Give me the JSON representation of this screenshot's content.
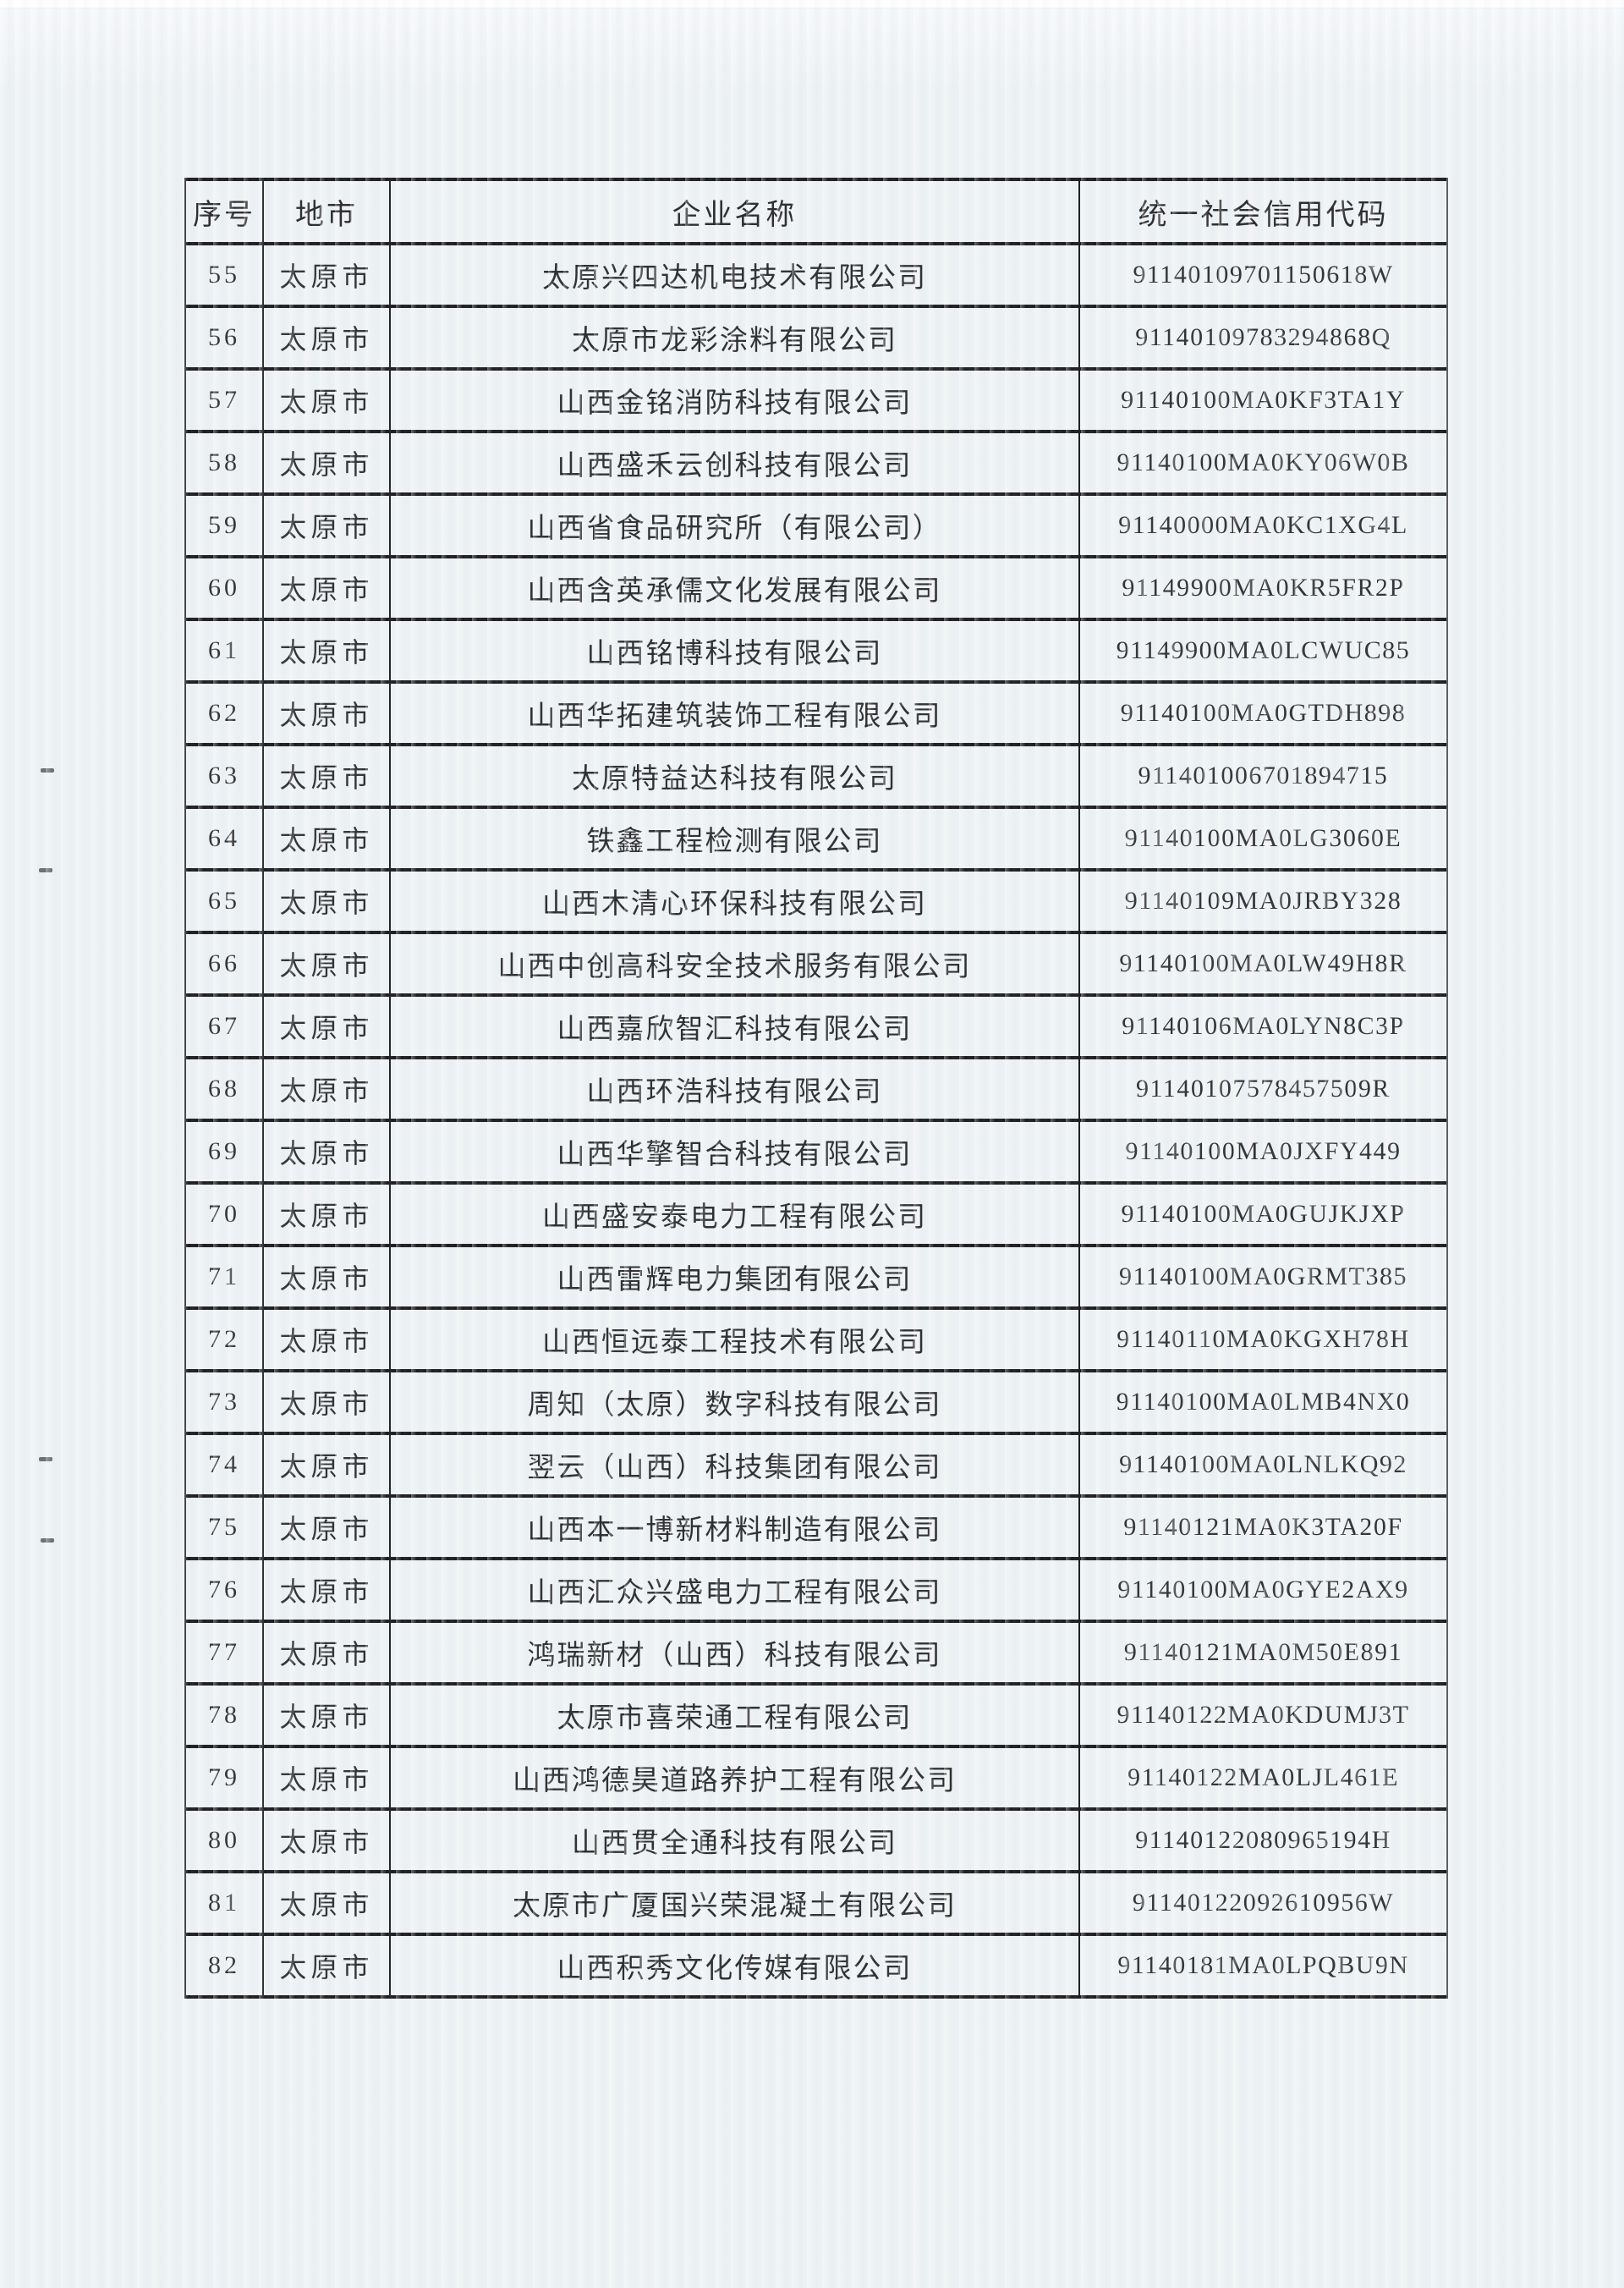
{
  "page": {
    "background_color": "#edf2f5",
    "border_color": "#1d1e20",
    "text_color": "#2d2d30"
  },
  "table": {
    "headers": [
      "序号",
      "地市",
      "企业名称",
      "统一社会信用代码"
    ],
    "rows": [
      {
        "no": "55",
        "city": "太原市",
        "name": "太原兴四达机电技术有限公司",
        "code": "91140109701150618W"
      },
      {
        "no": "56",
        "city": "太原市",
        "name": "太原市龙彩涂料有限公司",
        "code": "91140109783294868Q"
      },
      {
        "no": "57",
        "city": "太原市",
        "name": "山西金铭消防科技有限公司",
        "code": "91140100MA0KF3TA1Y"
      },
      {
        "no": "58",
        "city": "太原市",
        "name": "山西盛禾云创科技有限公司",
        "code": "91140100MA0KY06W0B"
      },
      {
        "no": "59",
        "city": "太原市",
        "name": "山西省食品研究所（有限公司）",
        "code": "91140000MA0KC1XG4L"
      },
      {
        "no": "60",
        "city": "太原市",
        "name": "山西含英承儒文化发展有限公司",
        "code": "91149900MA0KR5FR2P"
      },
      {
        "no": "61",
        "city": "太原市",
        "name": "山西铭博科技有限公司",
        "code": "91149900MA0LCWUC85"
      },
      {
        "no": "62",
        "city": "太原市",
        "name": "山西华拓建筑装饰工程有限公司",
        "code": "91140100MA0GTDH898"
      },
      {
        "no": "63",
        "city": "太原市",
        "name": "太原特益达科技有限公司",
        "code": "911401006701894715"
      },
      {
        "no": "64",
        "city": "太原市",
        "name": "铁鑫工程检测有限公司",
        "code": "91140100MA0LG3060E"
      },
      {
        "no": "65",
        "city": "太原市",
        "name": "山西木清心环保科技有限公司",
        "code": "91140109MA0JRBY328"
      },
      {
        "no": "66",
        "city": "太原市",
        "name": "山西中创高科安全技术服务有限公司",
        "code": "91140100MA0LW49H8R"
      },
      {
        "no": "67",
        "city": "太原市",
        "name": "山西嘉欣智汇科技有限公司",
        "code": "91140106MA0LYN8C3P"
      },
      {
        "no": "68",
        "city": "太原市",
        "name": "山西环浩科技有限公司",
        "code": "91140107578457509R"
      },
      {
        "no": "69",
        "city": "太原市",
        "name": "山西华擎智合科技有限公司",
        "code": "91140100MA0JXFY449"
      },
      {
        "no": "70",
        "city": "太原市",
        "name": "山西盛安泰电力工程有限公司",
        "code": "91140100MA0GUJKJXP"
      },
      {
        "no": "71",
        "city": "太原市",
        "name": "山西雷辉电力集团有限公司",
        "code": "91140100MA0GRMT385"
      },
      {
        "no": "72",
        "city": "太原市",
        "name": "山西恒远泰工程技术有限公司",
        "code": "91140110MA0KGXH78H"
      },
      {
        "no": "73",
        "city": "太原市",
        "name": "周知（太原）数字科技有限公司",
        "code": "91140100MA0LMB4NX0"
      },
      {
        "no": "74",
        "city": "太原市",
        "name": "翌云（山西）科技集团有限公司",
        "code": "91140100MA0LNLKQ92"
      },
      {
        "no": "75",
        "city": "太原市",
        "name": "山西本一博新材料制造有限公司",
        "code": "91140121MA0K3TA20F"
      },
      {
        "no": "76",
        "city": "太原市",
        "name": "山西汇众兴盛电力工程有限公司",
        "code": "91140100MA0GYE2AX9"
      },
      {
        "no": "77",
        "city": "太原市",
        "name": "鸿瑞新材（山西）科技有限公司",
        "code": "91140121MA0M50E891"
      },
      {
        "no": "78",
        "city": "太原市",
        "name": "太原市喜荣通工程有限公司",
        "code": "91140122MA0KDUMJ3T"
      },
      {
        "no": "79",
        "city": "太原市",
        "name": "山西鸿德昊道路养护工程有限公司",
        "code": "91140122MA0LJL461E"
      },
      {
        "no": "80",
        "city": "太原市",
        "name": "山西贯全通科技有限公司",
        "code": "91140122080965194H"
      },
      {
        "no": "81",
        "city": "太原市",
        "name": "太原市广厦国兴荣混凝土有限公司",
        "code": "91140122092610956W"
      },
      {
        "no": "82",
        "city": "太原市",
        "name": "山西积秀文化传媒有限公司",
        "code": "91140181MA0LPQBU9N"
      }
    ]
  }
}
